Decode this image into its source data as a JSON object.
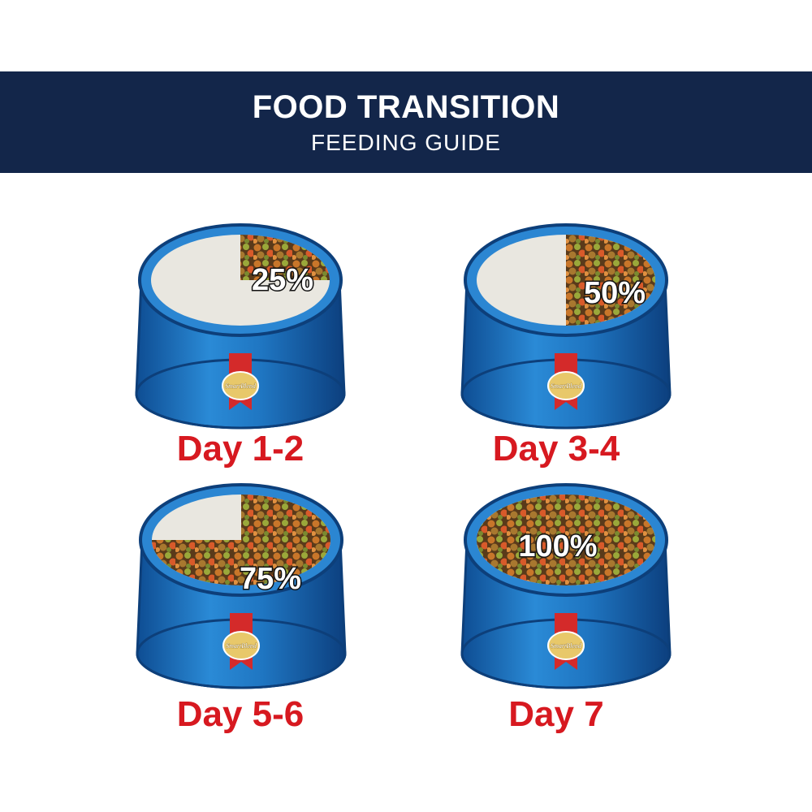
{
  "header": {
    "title": "FOOD TRANSITION",
    "subtitle": "FEEDING GUIDE"
  },
  "colors": {
    "banner": "#13264a",
    "day_label": "#d71920",
    "bowl": "#1d6fb8",
    "bowl_dark": "#0d3f7a",
    "old_food": "#e9e7e0",
    "ribbon": "#d42a2a",
    "badge": "#e8c86a"
  },
  "badge_logo_text": "SmartBlend",
  "stages": [
    {
      "day": "Day 1-2",
      "percent_label": "25%",
      "new_food_fraction": 0.25
    },
    {
      "day": "Day 3-4",
      "percent_label": "50%",
      "new_food_fraction": 0.5
    },
    {
      "day": "Day 5-6",
      "percent_label": "75%",
      "new_food_fraction": 0.75
    },
    {
      "day": "Day 7",
      "percent_label": "100%",
      "new_food_fraction": 1.0
    }
  ]
}
